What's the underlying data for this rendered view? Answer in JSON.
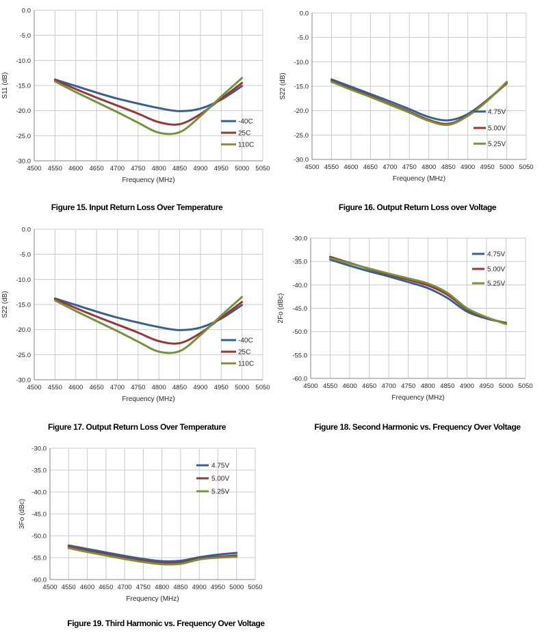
{
  "page": {
    "background": "#ffffff"
  },
  "colors": {
    "grid": "#c9c9c9",
    "axis": "#808080",
    "tick_text": "#262626",
    "caption_text": "#000000",
    "series_blue": "#366092",
    "series_red": "#953735",
    "series_green": "#76923C"
  },
  "chart_data": [
    {
      "type": "line",
      "title": "Figure 15. Input Return Loss Over Temperature",
      "xlabel": "Frequency (MHz)",
      "ylabel": "S11 (dB)",
      "xlim": [
        4500,
        5050
      ],
      "ylim": [
        -30,
        0
      ],
      "xticks": [
        4500,
        4550,
        4600,
        4650,
        4700,
        4750,
        4800,
        4850,
        4900,
        4950,
        5000,
        5050
      ],
      "yticks": [
        0,
        -5,
        -10,
        -15,
        -20,
        -25,
        -30
      ],
      "grid": true,
      "legend_location": "inside-right-middle",
      "x": [
        4550,
        4600,
        4650,
        4700,
        4750,
        4800,
        4850,
        4900,
        4950,
        5000
      ],
      "series": [
        {
          "name": "-40C",
          "color": "#366092",
          "values": [
            -13.8,
            -15.1,
            -16.4,
            -17.6,
            -18.6,
            -19.5,
            -20.1,
            -19.6,
            -17.8,
            -15.1
          ]
        },
        {
          "name": "25C",
          "color": "#953735",
          "values": [
            -13.9,
            -15.7,
            -17.4,
            -19.0,
            -20.6,
            -22.3,
            -22.7,
            -20.7,
            -17.6,
            -14.5
          ]
        },
        {
          "name": "110C",
          "color": "#76923C",
          "values": [
            -14.2,
            -16.3,
            -18.3,
            -20.3,
            -22.4,
            -24.4,
            -24.3,
            -21.1,
            -17.2,
            -13.5
          ]
        }
      ]
    },
    {
      "type": "line",
      "title": "Figure 16. Output Return Loss over Voltage",
      "xlabel": "Frequency (MHz)",
      "ylabel": "S22 (dB)",
      "xlim": [
        4500,
        5050
      ],
      "ylim": [
        -30,
        0
      ],
      "xticks": [
        4500,
        4550,
        4600,
        4650,
        4700,
        4750,
        4800,
        4850,
        4900,
        4950,
        5000,
        5050
      ],
      "yticks": [
        0,
        -5,
        -10,
        -15,
        -20,
        -25,
        -30
      ],
      "grid": true,
      "legend_location": "inside-right-middle",
      "x": [
        4550,
        4600,
        4650,
        4700,
        4750,
        4800,
        4850,
        4900,
        4950,
        5000
      ],
      "series": [
        {
          "name": "4.75V",
          "color": "#366092",
          "values": [
            -13.6,
            -15.1,
            -16.6,
            -18.1,
            -19.7,
            -21.3,
            -22.0,
            -20.7,
            -17.8,
            -14.3
          ]
        },
        {
          "name": "5.00V",
          "color": "#953735",
          "values": [
            -13.9,
            -15.5,
            -17.0,
            -18.6,
            -20.2,
            -21.9,
            -22.7,
            -21.0,
            -17.9,
            -14.4
          ]
        },
        {
          "name": "5.25V",
          "color": "#76923C",
          "values": [
            -14.1,
            -15.7,
            -17.2,
            -18.8,
            -20.4,
            -22.1,
            -22.9,
            -21.1,
            -18.0,
            -14.1
          ]
        }
      ]
    },
    {
      "type": "line",
      "title": "Figure 17. Output Return Loss Over Temperature",
      "xlabel": "Frequency (MHz)",
      "ylabel": "S22 (dB)",
      "xlim": [
        4500,
        5050
      ],
      "ylim": [
        -30,
        0
      ],
      "xticks": [
        4500,
        4550,
        4600,
        4650,
        4700,
        4750,
        4800,
        4850,
        4900,
        4950,
        5000,
        5050
      ],
      "yticks": [
        0,
        -5,
        -10,
        -15,
        -20,
        -25,
        -30
      ],
      "grid": true,
      "legend_location": "inside-right-middle",
      "x": [
        4550,
        4600,
        4650,
        4700,
        4750,
        4800,
        4850,
        4900,
        4950,
        5000
      ],
      "series": [
        {
          "name": "-40C",
          "color": "#366092",
          "values": [
            -13.8,
            -15.1,
            -16.4,
            -17.6,
            -18.6,
            -19.5,
            -20.1,
            -19.6,
            -17.8,
            -15.1
          ]
        },
        {
          "name": "25C",
          "color": "#953735",
          "values": [
            -13.9,
            -15.7,
            -17.4,
            -19.0,
            -20.6,
            -22.3,
            -22.7,
            -20.7,
            -17.6,
            -14.5
          ]
        },
        {
          "name": "110C",
          "color": "#76923C",
          "values": [
            -14.2,
            -16.3,
            -18.3,
            -20.3,
            -22.4,
            -24.4,
            -24.3,
            -21.1,
            -17.2,
            -13.5
          ]
        }
      ]
    },
    {
      "type": "line",
      "title": "Figure 18. Second Harmonic vs. Frequency Over Voltage",
      "xlabel": "Frequency (MHz)",
      "ylabel": "2Fo (dBc)",
      "xlim": [
        4500,
        5050
      ],
      "ylim": [
        -60,
        -30
      ],
      "xticks": [
        4500,
        4550,
        4600,
        4650,
        4700,
        4750,
        4800,
        4850,
        4900,
        4950,
        5000,
        5050
      ],
      "yticks": [
        -30,
        -35,
        -40,
        -45,
        -50,
        -55,
        -60
      ],
      "grid": true,
      "legend_location": "inside-top-right",
      "x": [
        4550,
        4600,
        4650,
        4700,
        4750,
        4800,
        4850,
        4900,
        4950,
        5000
      ],
      "series": [
        {
          "name": "4.75V",
          "color": "#366092",
          "values": [
            -34.6,
            -35.9,
            -37.1,
            -38.2,
            -39.4,
            -40.7,
            -42.8,
            -45.7,
            -47.2,
            -48.1
          ]
        },
        {
          "name": "5.00V",
          "color": "#953735",
          "values": [
            -34.0,
            -35.3,
            -36.6,
            -37.8,
            -38.9,
            -40.1,
            -42.1,
            -45.2,
            -47.0,
            -48.2
          ]
        },
        {
          "name": "5.25V",
          "color": "#76923C",
          "values": [
            -34.3,
            -35.4,
            -36.5,
            -37.6,
            -38.6,
            -39.7,
            -41.7,
            -45.0,
            -46.9,
            -48.4
          ]
        }
      ]
    },
    {
      "type": "line",
      "title": "Figure 19. Third Harmonic vs. Frequency Over Voltage",
      "xlabel": "Frequency (MHz)",
      "ylabel": "3Fo (dBc)",
      "xlim": [
        4500,
        5050
      ],
      "ylim": [
        -60,
        -30
      ],
      "xticks": [
        4500,
        4550,
        4600,
        4650,
        4700,
        4750,
        4800,
        4850,
        4900,
        4950,
        5000,
        5050
      ],
      "yticks": [
        -30,
        -35,
        -40,
        -45,
        -50,
        -55,
        -60
      ],
      "grid": true,
      "legend_location": "inside-top-center-right",
      "x": [
        4550,
        4600,
        4650,
        4700,
        4750,
        4800,
        4850,
        4900,
        4950,
        5000
      ],
      "series": [
        {
          "name": "4.75V",
          "color": "#366092",
          "values": [
            -52.2,
            -53.0,
            -53.8,
            -54.6,
            -55.3,
            -55.8,
            -55.7,
            -54.9,
            -54.3,
            -53.9
          ]
        },
        {
          "name": "5.00V",
          "color": "#953735",
          "values": [
            -52.5,
            -53.4,
            -54.2,
            -55.0,
            -55.7,
            -56.2,
            -56.1,
            -55.2,
            -54.8,
            -54.5
          ]
        },
        {
          "name": "5.25V",
          "color": "#76923C",
          "values": [
            -52.8,
            -53.7,
            -54.5,
            -55.3,
            -56.0,
            -56.5,
            -56.4,
            -55.4,
            -55.0,
            -54.8
          ]
        }
      ]
    }
  ]
}
